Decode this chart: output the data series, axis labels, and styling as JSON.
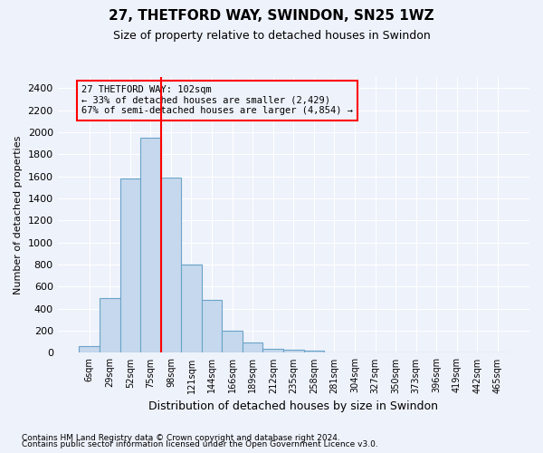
{
  "title_line1": "27, THETFORD WAY, SWINDON, SN25 1WZ",
  "title_line2": "Size of property relative to detached houses in Swindon",
  "xlabel": "Distribution of detached houses by size in Swindon",
  "ylabel": "Number of detached properties",
  "footer_line1": "Contains HM Land Registry data © Crown copyright and database right 2024.",
  "footer_line2": "Contains public sector information licensed under the Open Government Licence v3.0.",
  "categories": [
    "6sqm",
    "29sqm",
    "52sqm",
    "75sqm",
    "98sqm",
    "121sqm",
    "144sqm",
    "166sqm",
    "189sqm",
    "212sqm",
    "235sqm",
    "258sqm",
    "281sqm",
    "304sqm",
    "327sqm",
    "350sqm",
    "373sqm",
    "396sqm",
    "419sqm",
    "442sqm",
    "465sqm"
  ],
  "bar_values": [
    60,
    500,
    1580,
    1950,
    1590,
    800,
    480,
    200,
    90,
    35,
    25,
    20,
    0,
    0,
    0,
    0,
    0,
    0,
    0,
    0,
    0
  ],
  "bar_color": "#c5d8ed",
  "bar_edgecolor": "#6aa3c8",
  "background_color": "#eef2fb",
  "grid_color": "#ffffff",
  "ylim": [
    0,
    2500
  ],
  "yticks": [
    0,
    200,
    400,
    600,
    800,
    1000,
    1200,
    1400,
    1600,
    1800,
    2000,
    2200,
    2400
  ],
  "annotation_line1": "27 THETFORD WAY: 102sqm",
  "annotation_line2": "← 33% of detached houses are smaller (2,429)",
  "annotation_line3": "67% of semi-detached houses are larger (4,854) →",
  "vline_x": 3.5,
  "title1_fontsize": 11,
  "title2_fontsize": 9,
  "xlabel_fontsize": 9,
  "ylabel_fontsize": 8,
  "tick_fontsize": 7,
  "footer_fontsize": 6.5
}
